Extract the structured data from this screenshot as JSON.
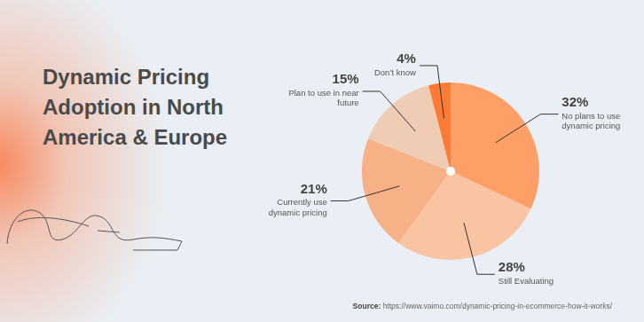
{
  "chart_data": {
    "type": "pie",
    "title": "Dynamic Pricing Adoption in North America & Europe",
    "categories": [
      "No plans to use dynamic pricing",
      "Still Evaluating",
      "Currently use dynamic pricing",
      "Plan to use in near future",
      "Don’t know"
    ],
    "values": [
      32,
      28,
      21,
      15,
      4
    ],
    "value_labels": [
      "32%",
      "28%",
      "21%",
      "15%",
      "4%"
    ],
    "colors": [
      "#fd9f67",
      "#f9c4a2",
      "#f8b187",
      "#f0ccb4",
      "#fd7b34"
    ],
    "data_labels": true,
    "source": "Source: https://www.vaimo.com/dynamic-pricing-in-ecommerce-how-it-works/"
  }
}
